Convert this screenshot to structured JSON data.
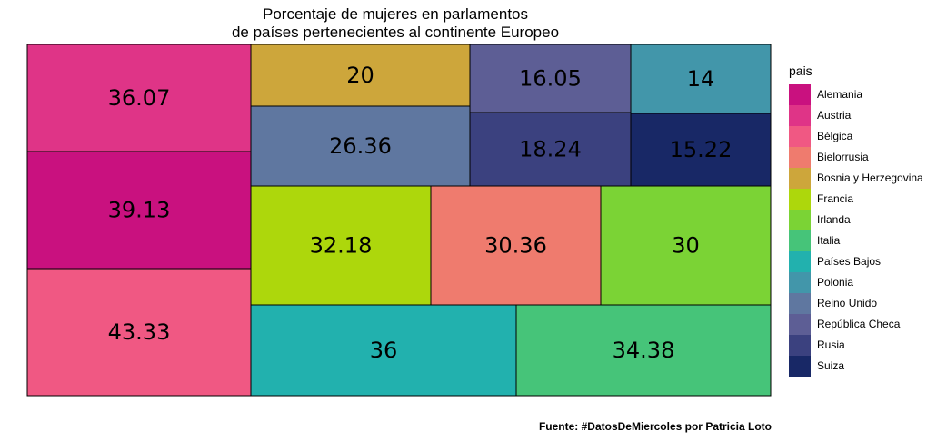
{
  "title_line1": "Porcentaje de mujeres en parlamentos",
  "title_line2": "de países pertenecientes al continente Europeo",
  "caption": "Fuente: #DatosDeMiercoles por Patricia Loto",
  "chart_data": {
    "type": "treemap",
    "title": "Porcentaje de mujeres en parlamentos de países pertenecientes al continente Europeo",
    "legend_title": "pais",
    "legend_position": "right",
    "value_unit": "percent",
    "items": [
      {
        "name": "Alemania",
        "value": 39.13,
        "label": "39.13",
        "color": "#c9117f"
      },
      {
        "name": "Austria",
        "value": 36.07,
        "label": "36.07",
        "color": "#df3487"
      },
      {
        "name": "Bélgica",
        "value": 43.33,
        "label": "43.33",
        "color": "#f05883"
      },
      {
        "name": "Bielorrusia",
        "value": 30.36,
        "label": "30.36",
        "color": "#ef7b6e"
      },
      {
        "name": "Bosnia y Herzegovina",
        "value": 20,
        "label": "20",
        "color": "#cda63b"
      },
      {
        "name": "Francia",
        "value": 32.18,
        "label": "32.18",
        "color": "#add70c"
      },
      {
        "name": "Irlanda",
        "value": 30,
        "label": "30",
        "color": "#7bd335"
      },
      {
        "name": "Italia",
        "value": 34.38,
        "label": "34.38",
        "color": "#46c479"
      },
      {
        "name": "Países Bajos",
        "value": 36,
        "label": "36",
        "color": "#22b1ae"
      },
      {
        "name": "Polonia",
        "value": 14,
        "label": "14",
        "color": "#4296aa"
      },
      {
        "name": "Reino Unido",
        "value": 26.36,
        "label": "26.36",
        "color": "#5f77a0"
      },
      {
        "name": "República Checa",
        "value": 16.05,
        "label": "16.05",
        "color": "#5d5e95"
      },
      {
        "name": "Rusia",
        "value": 18.24,
        "label": "18.24",
        "color": "#3b417f"
      },
      {
        "name": "Suiza",
        "value": 15.22,
        "label": "15.22",
        "color": "#182866"
      }
    ]
  }
}
